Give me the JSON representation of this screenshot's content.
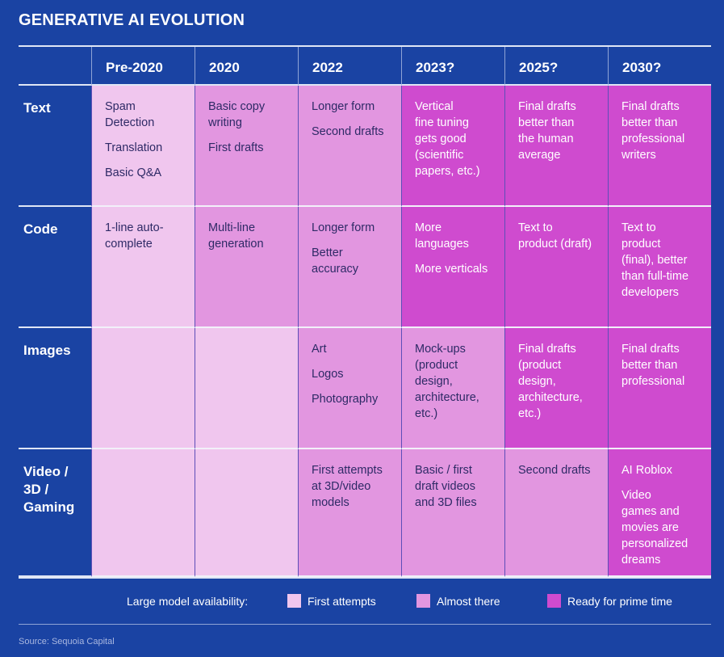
{
  "title": "GENERATIVE AI EVOLUTION",
  "columns": [
    "Pre-2020",
    "2020",
    "2022",
    "2023?",
    "2025?",
    "2030?"
  ],
  "rows": [
    {
      "label": "Text",
      "cells": [
        {
          "level": 1,
          "items": [
            "Spam\nDetection",
            "Translation",
            "Basic Q&A"
          ]
        },
        {
          "level": 2,
          "items": [
            "Basic copy\nwriting",
            "First drafts"
          ]
        },
        {
          "level": 2,
          "items": [
            "Longer form",
            "Second drafts"
          ]
        },
        {
          "level": 3,
          "items": [
            "Vertical\nfine tuning\ngets good\n(scientific\npapers, etc.)"
          ]
        },
        {
          "level": 3,
          "items": [
            "Final drafts\nbetter than\nthe human\naverage"
          ]
        },
        {
          "level": 3,
          "items": [
            "Final drafts\nbetter than\nprofessional\nwriters"
          ]
        }
      ]
    },
    {
      "label": "Code",
      "cells": [
        {
          "level": 1,
          "items": [
            "1-line auto-\ncomplete"
          ]
        },
        {
          "level": 2,
          "items": [
            "Multi-line\ngeneration"
          ]
        },
        {
          "level": 2,
          "items": [
            "Longer form",
            "Better\naccuracy"
          ]
        },
        {
          "level": 3,
          "items": [
            "More\nlanguages",
            "More verticals"
          ]
        },
        {
          "level": 3,
          "items": [
            "Text to\nproduct (draft)"
          ]
        },
        {
          "level": 3,
          "items": [
            "Text to\nproduct\n(final), better\nthan full-time\ndevelopers"
          ]
        }
      ]
    },
    {
      "label": "Images",
      "cells": [
        {
          "level": 1,
          "items": []
        },
        {
          "level": 1,
          "items": []
        },
        {
          "level": 2,
          "items": [
            "Art",
            "Logos",
            "Photography"
          ]
        },
        {
          "level": 2,
          "items": [
            "Mock-ups\n(product\ndesign,\narchitecture,\netc.)"
          ]
        },
        {
          "level": 3,
          "items": [
            "Final drafts\n(product\ndesign,\narchitecture,\netc.)"
          ]
        },
        {
          "level": 3,
          "items": [
            "Final drafts\nbetter than\nprofessional"
          ]
        }
      ]
    },
    {
      "label": "Video /\n3D /\nGaming",
      "cells": [
        {
          "level": 1,
          "items": []
        },
        {
          "level": 1,
          "items": []
        },
        {
          "level": 2,
          "items": [
            "First attempts\nat 3D/video\nmodels"
          ]
        },
        {
          "level": 2,
          "items": [
            "Basic / first\ndraft videos\nand 3D files"
          ]
        },
        {
          "level": 2,
          "items": [
            "Second drafts"
          ]
        },
        {
          "level": 3,
          "items": [
            "AI Roblox",
            "Video\ngames and\nmovies are\npersonalized\ndreams"
          ]
        }
      ]
    }
  ],
  "legend": {
    "label": "Large model availability:",
    "entries": [
      {
        "label": "First attempts",
        "color": "#f0c6ee"
      },
      {
        "label": "Almost there",
        "color": "#e296e0"
      },
      {
        "label": "Ready for prime time",
        "color": "#cf4bcf"
      }
    ]
  },
  "source": "Source: Sequoia Capital",
  "chart_data": {
    "type": "table",
    "title": "GENERATIVE AI EVOLUTION",
    "columns": [
      "Pre-2020",
      "2020",
      "2022",
      "2023?",
      "2025?",
      "2030?"
    ],
    "row_labels": [
      "Text",
      "Code",
      "Images",
      "Video / 3D / Gaming"
    ],
    "levels": [
      [
        1,
        2,
        2,
        3,
        3,
        3
      ],
      [
        1,
        2,
        2,
        3,
        3,
        3
      ],
      [
        1,
        1,
        2,
        2,
        3,
        3
      ],
      [
        1,
        1,
        2,
        2,
        2,
        3
      ]
    ],
    "level_names": [
      "First attempts",
      "Almost there",
      "Ready for prime time"
    ]
  }
}
